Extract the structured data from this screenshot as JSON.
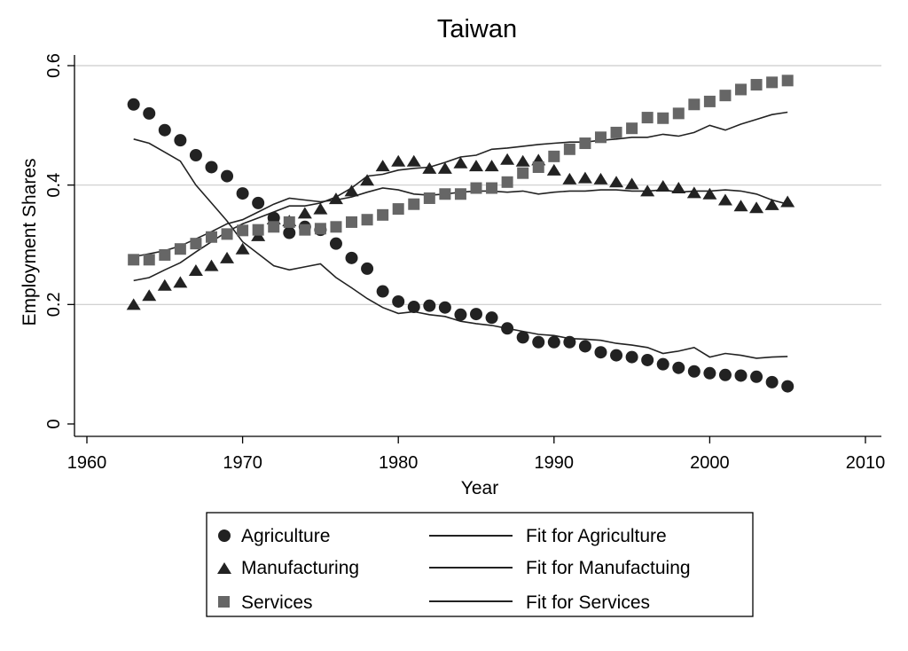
{
  "chart_data": {
    "type": "scatter",
    "title": "Taiwan",
    "xlabel": "Year",
    "ylabel": "Employment Shares",
    "xlim": [
      1960,
      2010
    ],
    "ylim": [
      0,
      0.6
    ],
    "x_ticks": [
      1960,
      1970,
      1980,
      1990,
      2000,
      2010
    ],
    "x_tick_labels": [
      "1960",
      "1970",
      "1980",
      "1990",
      "2000",
      "2010"
    ],
    "y_ticks": [
      0,
      0.2,
      0.4,
      0.6
    ],
    "y_tick_labels": [
      "0",
      "0.2",
      "0.4",
      "0.6"
    ],
    "grid": "horizontal",
    "x": [
      1963,
      1964,
      1965,
      1966,
      1967,
      1968,
      1969,
      1970,
      1971,
      1972,
      1973,
      1974,
      1975,
      1976,
      1977,
      1978,
      1979,
      1980,
      1981,
      1982,
      1983,
      1984,
      1985,
      1986,
      1987,
      1988,
      1989,
      1990,
      1991,
      1992,
      1993,
      1994,
      1995,
      1996,
      1997,
      1998,
      1999,
      2000,
      2001,
      2002,
      2003,
      2004,
      2005
    ],
    "series": [
      {
        "name": "Agriculture",
        "marker": "circle",
        "values": [
          0.535,
          0.52,
          0.492,
          0.475,
          0.45,
          0.43,
          0.415,
          0.386,
          0.37,
          0.345,
          0.32,
          0.33,
          0.325,
          0.302,
          0.278,
          0.26,
          0.222,
          0.205,
          0.196,
          0.198,
          0.195,
          0.183,
          0.184,
          0.178,
          0.16,
          0.145,
          0.137,
          0.137,
          0.137,
          0.13,
          0.12,
          0.115,
          0.112,
          0.107,
          0.1,
          0.094,
          0.088,
          0.085,
          0.082,
          0.081,
          0.079,
          0.07,
          0.063
        ],
        "fit_name": "Fit for Agriculture",
        "fit_values": [
          0.477,
          0.47,
          0.455,
          0.44,
          0.4,
          0.37,
          0.34,
          0.305,
          0.285,
          0.265,
          0.258,
          0.263,
          0.268,
          0.245,
          0.228,
          0.21,
          0.195,
          0.185,
          0.188,
          0.183,
          0.18,
          0.172,
          0.168,
          0.165,
          0.16,
          0.155,
          0.15,
          0.148,
          0.143,
          0.142,
          0.14,
          0.135,
          0.132,
          0.128,
          0.118,
          0.122,
          0.128,
          0.112,
          0.118,
          0.115,
          0.11,
          0.112,
          0.113
        ]
      },
      {
        "name": "Manufacturing",
        "marker": "triangle",
        "values": [
          0.2,
          0.215,
          0.232,
          0.237,
          0.257,
          0.265,
          0.278,
          0.293,
          0.315,
          0.343,
          0.34,
          0.353,
          0.36,
          0.377,
          0.39,
          0.408,
          0.432,
          0.44,
          0.44,
          0.428,
          0.428,
          0.437,
          0.432,
          0.432,
          0.443,
          0.44,
          0.442,
          0.425,
          0.41,
          0.412,
          0.41,
          0.405,
          0.402,
          0.39,
          0.398,
          0.395,
          0.387,
          0.385,
          0.375,
          0.365,
          0.362,
          0.367,
          0.372
        ],
        "fit_name": "Fit for Manufactuing",
        "fit_values": [
          0.28,
          0.285,
          0.29,
          0.298,
          0.31,
          0.322,
          0.335,
          0.342,
          0.355,
          0.368,
          0.378,
          0.375,
          0.372,
          0.375,
          0.38,
          0.388,
          0.395,
          0.392,
          0.385,
          0.383,
          0.385,
          0.388,
          0.39,
          0.39,
          0.388,
          0.39,
          0.385,
          0.388,
          0.39,
          0.39,
          0.392,
          0.392,
          0.39,
          0.39,
          0.392,
          0.388,
          0.39,
          0.39,
          0.392,
          0.39,
          0.385,
          0.375,
          0.368
        ]
      },
      {
        "name": "Services",
        "marker": "square",
        "values": [
          0.275,
          0.275,
          0.283,
          0.293,
          0.302,
          0.313,
          0.318,
          0.324,
          0.325,
          0.33,
          0.338,
          0.325,
          0.327,
          0.33,
          0.338,
          0.342,
          0.35,
          0.36,
          0.368,
          0.378,
          0.385,
          0.385,
          0.395,
          0.395,
          0.405,
          0.42,
          0.43,
          0.448,
          0.46,
          0.47,
          0.48,
          0.488,
          0.495,
          0.513,
          0.512,
          0.52,
          0.535,
          0.54,
          0.55,
          0.56,
          0.568,
          0.572,
          0.575
        ],
        "fit_name": "Fit for Services",
        "fit_values": [
          0.24,
          0.245,
          0.258,
          0.27,
          0.288,
          0.305,
          0.322,
          0.335,
          0.345,
          0.355,
          0.365,
          0.365,
          0.37,
          0.38,
          0.395,
          0.415,
          0.418,
          0.425,
          0.428,
          0.43,
          0.438,
          0.447,
          0.45,
          0.46,
          0.462,
          0.465,
          0.468,
          0.47,
          0.472,
          0.472,
          0.475,
          0.477,
          0.48,
          0.48,
          0.485,
          0.482,
          0.488,
          0.5,
          0.492,
          0.502,
          0.51,
          0.518,
          0.522
        ]
      }
    ]
  }
}
